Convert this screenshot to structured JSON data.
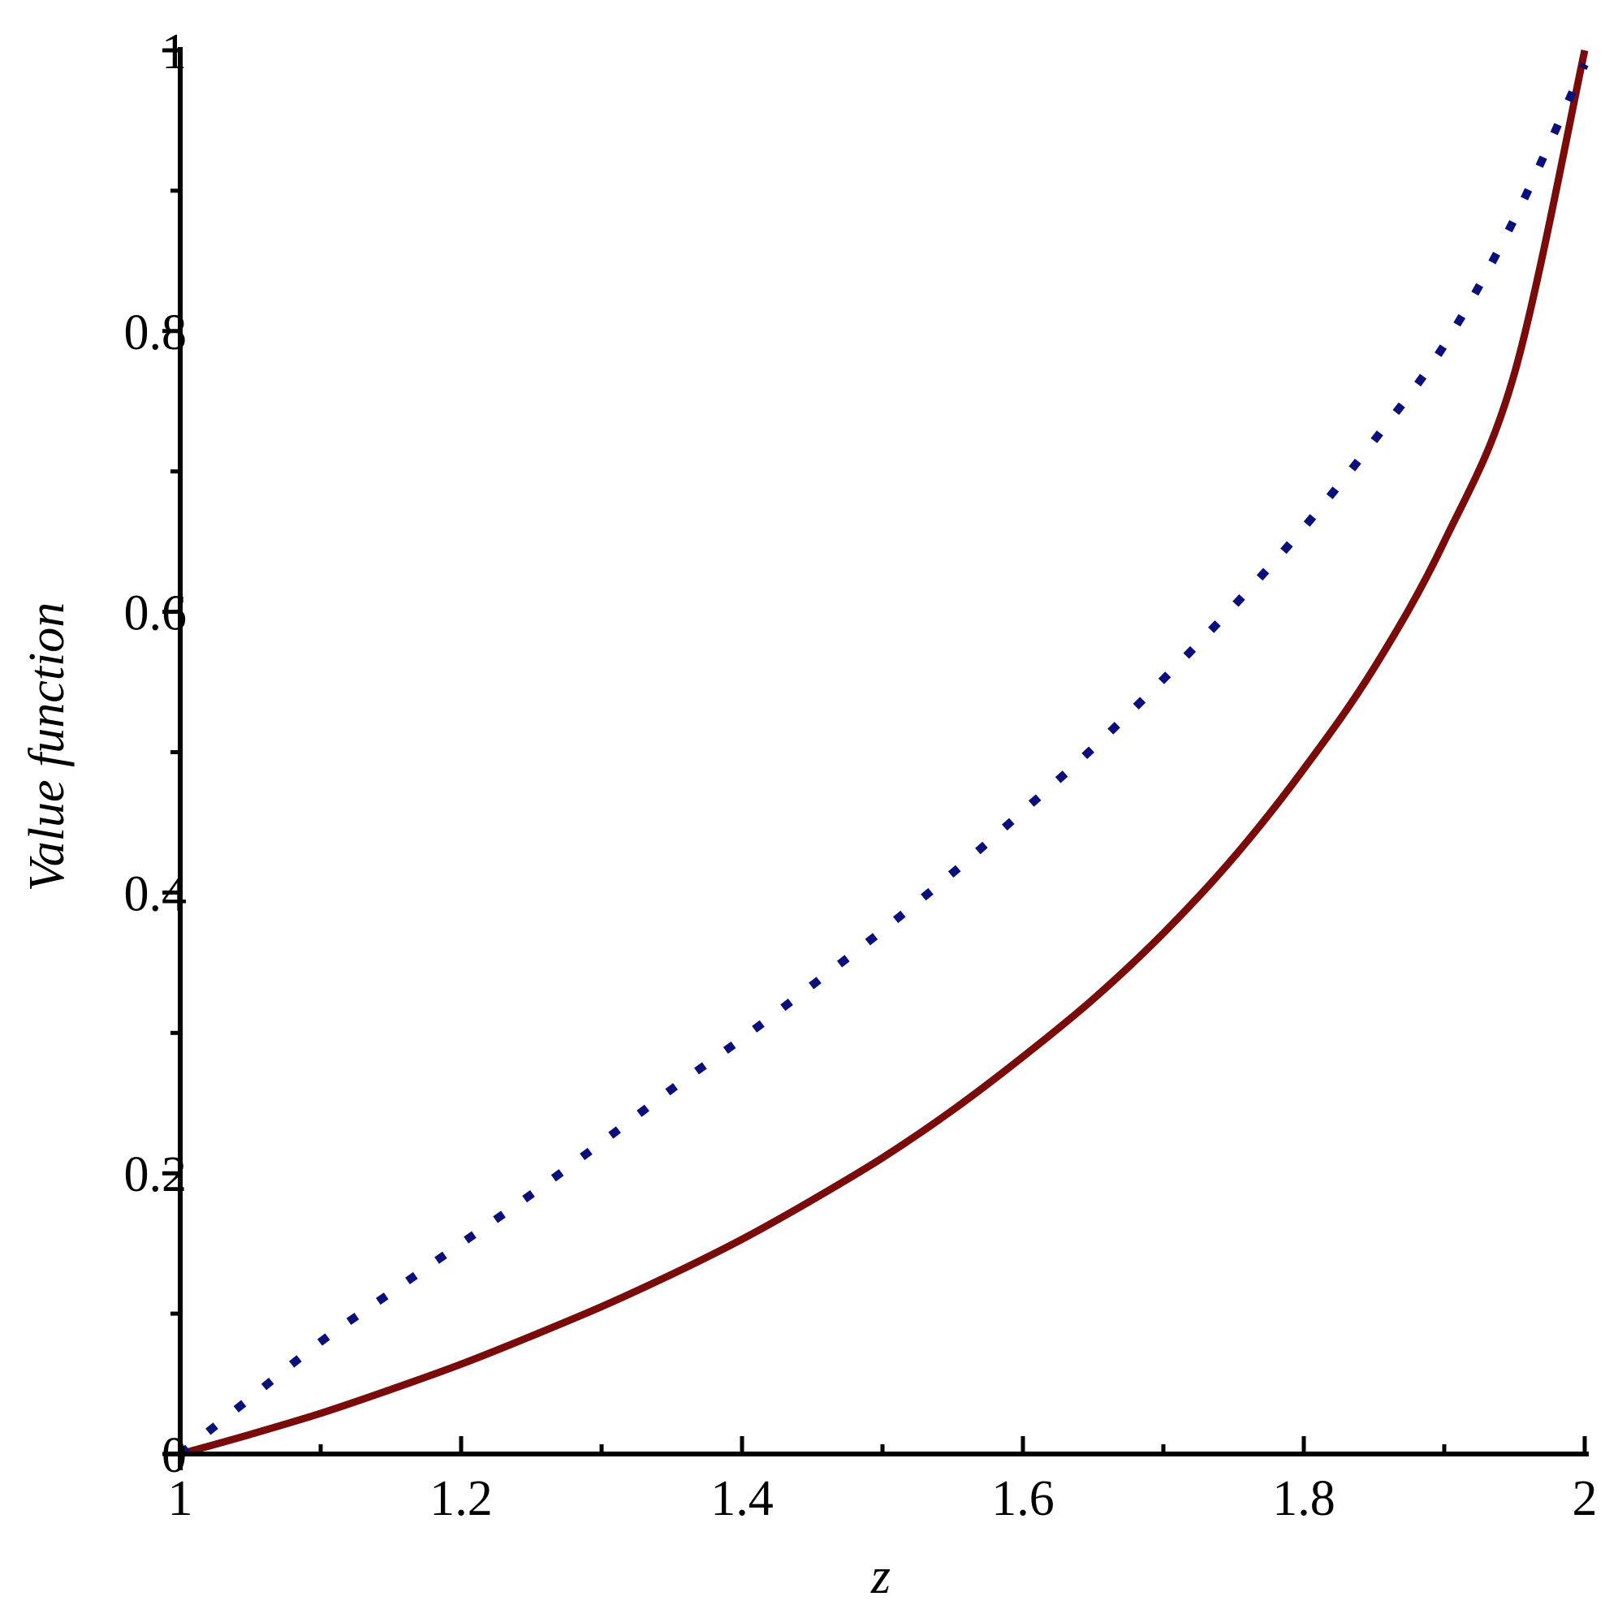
{
  "chart_data": {
    "type": "line",
    "title": "",
    "xlabel": "z",
    "ylabel": "Value function",
    "xlim": [
      1,
      2
    ],
    "ylim": [
      0,
      1
    ],
    "x_ticks": [
      {
        "value": 1,
        "label": "1"
      },
      {
        "value": 1.2,
        "label": "1.2"
      },
      {
        "value": 1.4,
        "label": "1.4"
      },
      {
        "value": 1.6,
        "label": "1.6"
      },
      {
        "value": 1.8,
        "label": "1.8"
      },
      {
        "value": 2,
        "label": "2"
      }
    ],
    "y_ticks": [
      {
        "value": 0,
        "label": "0"
      },
      {
        "value": 0.2,
        "label": "0.2"
      },
      {
        "value": 0.4,
        "label": "0.4"
      },
      {
        "value": 0.6,
        "label": "0.6"
      },
      {
        "value": 0.8,
        "label": "0.8"
      },
      {
        "value": 1,
        "label": "1"
      }
    ],
    "x_minor_step": 0.1,
    "y_minor_step": 0.1,
    "grid": false,
    "legend": "none",
    "series": [
      {
        "style": "solid",
        "color": "#7a0b0b",
        "x": [
          1.0,
          1.05,
          1.1,
          1.15,
          1.2,
          1.25,
          1.3,
          1.35,
          1.4,
          1.45,
          1.5,
          1.55,
          1.6,
          1.65,
          1.7,
          1.75,
          1.8,
          1.85,
          1.9,
          1.95,
          2.0
        ],
        "y": [
          0.0,
          0.014,
          0.029,
          0.046,
          0.064,
          0.084,
          0.105,
          0.128,
          0.153,
          0.181,
          0.211,
          0.245,
          0.283,
          0.324,
          0.371,
          0.425,
          0.488,
          0.56,
          0.65,
          0.77,
          1.0
        ]
      },
      {
        "style": "dotted",
        "color": "#0a0f7a",
        "x": [
          1.0,
          1.05,
          1.1,
          1.15,
          1.2,
          1.25,
          1.3,
          1.35,
          1.4,
          1.45,
          1.5,
          1.55,
          1.6,
          1.65,
          1.7,
          1.75,
          1.8,
          1.85,
          1.9,
          1.95,
          2.0
        ],
        "y": [
          0.0,
          0.04,
          0.08,
          0.115,
          0.15,
          0.185,
          0.222,
          0.26,
          0.296,
          0.334,
          0.373,
          0.414,
          0.458,
          0.503,
          0.552,
          0.604,
          0.66,
          0.722,
          0.79,
          0.88,
          0.99
        ]
      }
    ]
  }
}
